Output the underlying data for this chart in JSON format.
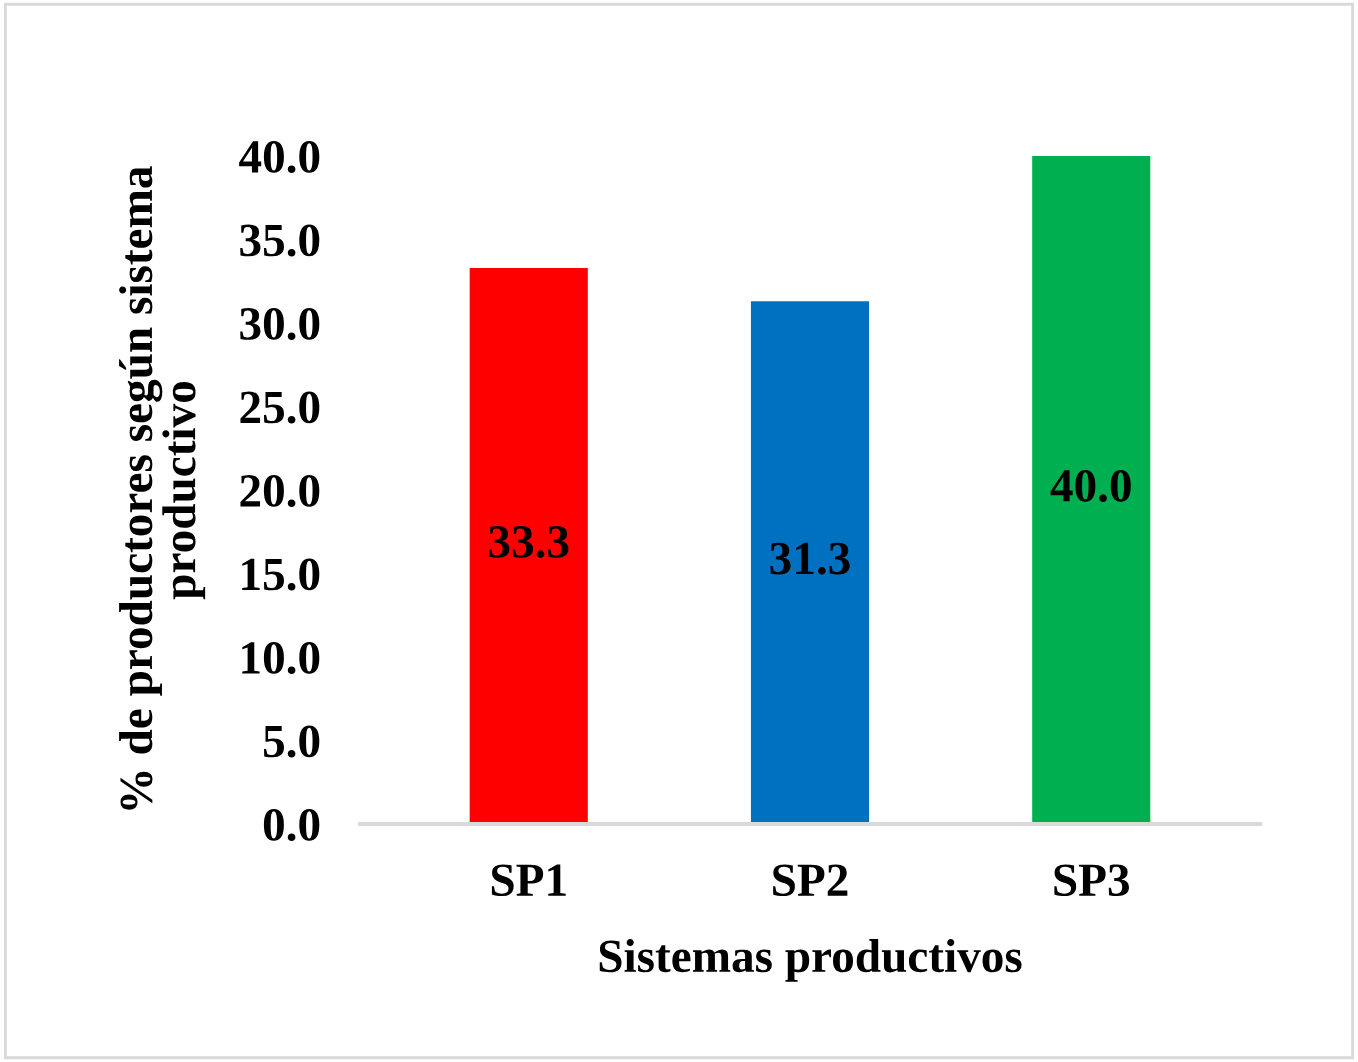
{
  "chart_data": {
    "type": "bar",
    "xlabel": "Sistemas productivos",
    "ylabel": "% de productores según sistema\nproductivo",
    "categories": [
      "SP1",
      "SP2",
      "SP3"
    ],
    "values": [
      33.3,
      31.3,
      40.0
    ],
    "value_labels": [
      "33.3",
      "31.3",
      "40.0"
    ],
    "colors": [
      "#ff0000",
      "#0070c0",
      "#00b050"
    ],
    "ylim": [
      0,
      40
    ],
    "yticks": [
      {
        "value": 0,
        "label": "0.0"
      },
      {
        "value": 5,
        "label": "5.0"
      },
      {
        "value": 10,
        "label": "10.0"
      },
      {
        "value": 15,
        "label": "15.0"
      },
      {
        "value": 20,
        "label": "20.0"
      },
      {
        "value": 25,
        "label": "25.0"
      },
      {
        "value": 30,
        "label": "30.0"
      },
      {
        "value": 35,
        "label": "35.0"
      },
      {
        "value": 40,
        "label": "40.0"
      }
    ],
    "grid": false,
    "legend": false
  }
}
